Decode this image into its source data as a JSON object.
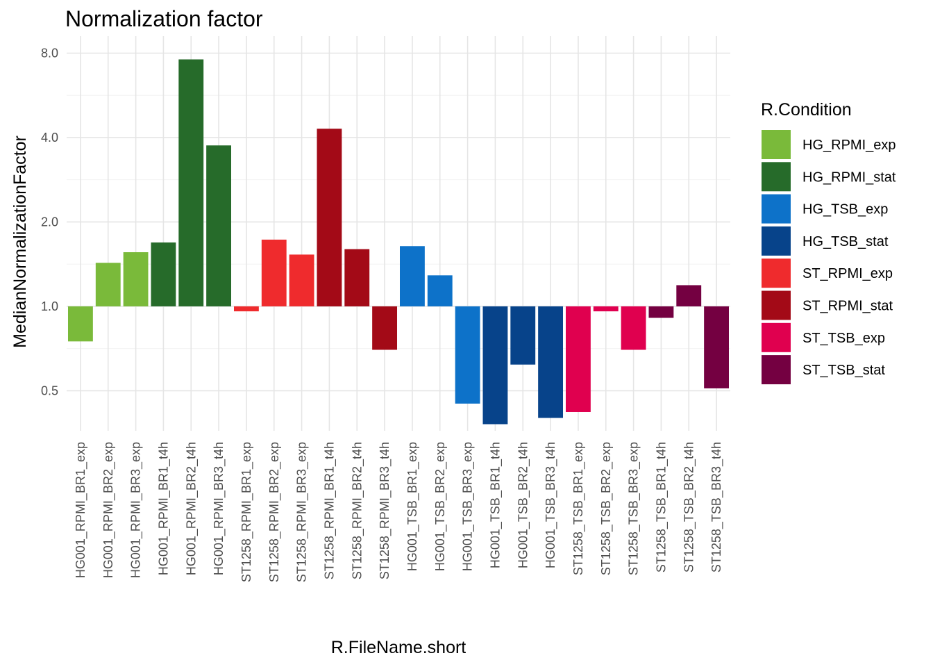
{
  "chart_data": {
    "type": "bar",
    "title": "Normalization factor",
    "xlabel": "R.FileName.short",
    "ylabel": "MedianNormalizationFactor",
    "y_scale": "log2",
    "baseline": 1.0,
    "ylim": [
      0.36,
      9.2
    ],
    "yticks": [
      0.5,
      1.0,
      2.0,
      4.0,
      8.0
    ],
    "ytick_labels": [
      "0.5",
      "1.0",
      "2.0",
      "4.0",
      "8.0"
    ],
    "grid": true,
    "legend": {
      "title": "R.Condition",
      "position": "right",
      "entries": [
        {
          "label": "HG_RPMI_exp",
          "color": "#7aba3a"
        },
        {
          "label": "HG_RPMI_stat",
          "color": "#266b2a"
        },
        {
          "label": "HG_TSB_exp",
          "color": "#0d72c9"
        },
        {
          "label": "HG_TSB_stat",
          "color": "#07438a"
        },
        {
          "label": "ST_RPMI_exp",
          "color": "#ef2b2d"
        },
        {
          "label": "ST_RPMI_stat",
          "color": "#a30a17"
        },
        {
          "label": "ST_TSB_exp",
          "color": "#e0004f"
        },
        {
          "label": "ST_TSB_stat",
          "color": "#740041"
        }
      ]
    },
    "categories": [
      "HG001_RPMI_BR1_exp",
      "HG001_RPMI_BR2_exp",
      "HG001_RPMI_BR3_exp",
      "HG001_RPMI_BR1_t4h",
      "HG001_RPMI_BR2_t4h",
      "HG001_RPMI_BR3_t4h",
      "ST1258_RPMI_BR1_exp",
      "ST1258_RPMI_BR2_exp",
      "ST1258_RPMI_BR3_exp",
      "ST1258_RPMI_BR1_t4h",
      "ST1258_RPMI_BR2_t4h",
      "ST1258_RPMI_BR3_t4h",
      "HG001_TSB_BR1_exp",
      "HG001_TSB_BR2_exp",
      "HG001_TSB_BR3_exp",
      "HG001_TSB_BR1_t4h",
      "HG001_TSB_BR2_t4h",
      "HG001_TSB_BR3_t4h",
      "ST1258_TSB_BR1_exp",
      "ST1258_TSB_BR2_exp",
      "ST1258_TSB_BR3_exp",
      "ST1258_TSB_BR1_t4h",
      "ST1258_TSB_BR2_t4h",
      "ST1258_TSB_BR3_t4h"
    ],
    "values": [
      0.75,
      1.43,
      1.56,
      1.69,
      7.6,
      3.75,
      0.96,
      1.73,
      1.53,
      4.3,
      1.6,
      0.7,
      1.64,
      1.29,
      0.45,
      0.38,
      0.62,
      0.4,
      0.42,
      0.96,
      0.7,
      0.91,
      1.19,
      0.51
    ],
    "conditions": [
      "HG_RPMI_exp",
      "HG_RPMI_exp",
      "HG_RPMI_exp",
      "HG_RPMI_stat",
      "HG_RPMI_stat",
      "HG_RPMI_stat",
      "ST_RPMI_exp",
      "ST_RPMI_exp",
      "ST_RPMI_exp",
      "ST_RPMI_stat",
      "ST_RPMI_stat",
      "ST_RPMI_stat",
      "HG_TSB_exp",
      "HG_TSB_exp",
      "HG_TSB_exp",
      "HG_TSB_stat",
      "HG_TSB_stat",
      "HG_TSB_stat",
      "ST_TSB_exp",
      "ST_TSB_exp",
      "ST_TSB_exp",
      "ST_TSB_stat",
      "ST_TSB_stat",
      "ST_TSB_stat"
    ]
  }
}
